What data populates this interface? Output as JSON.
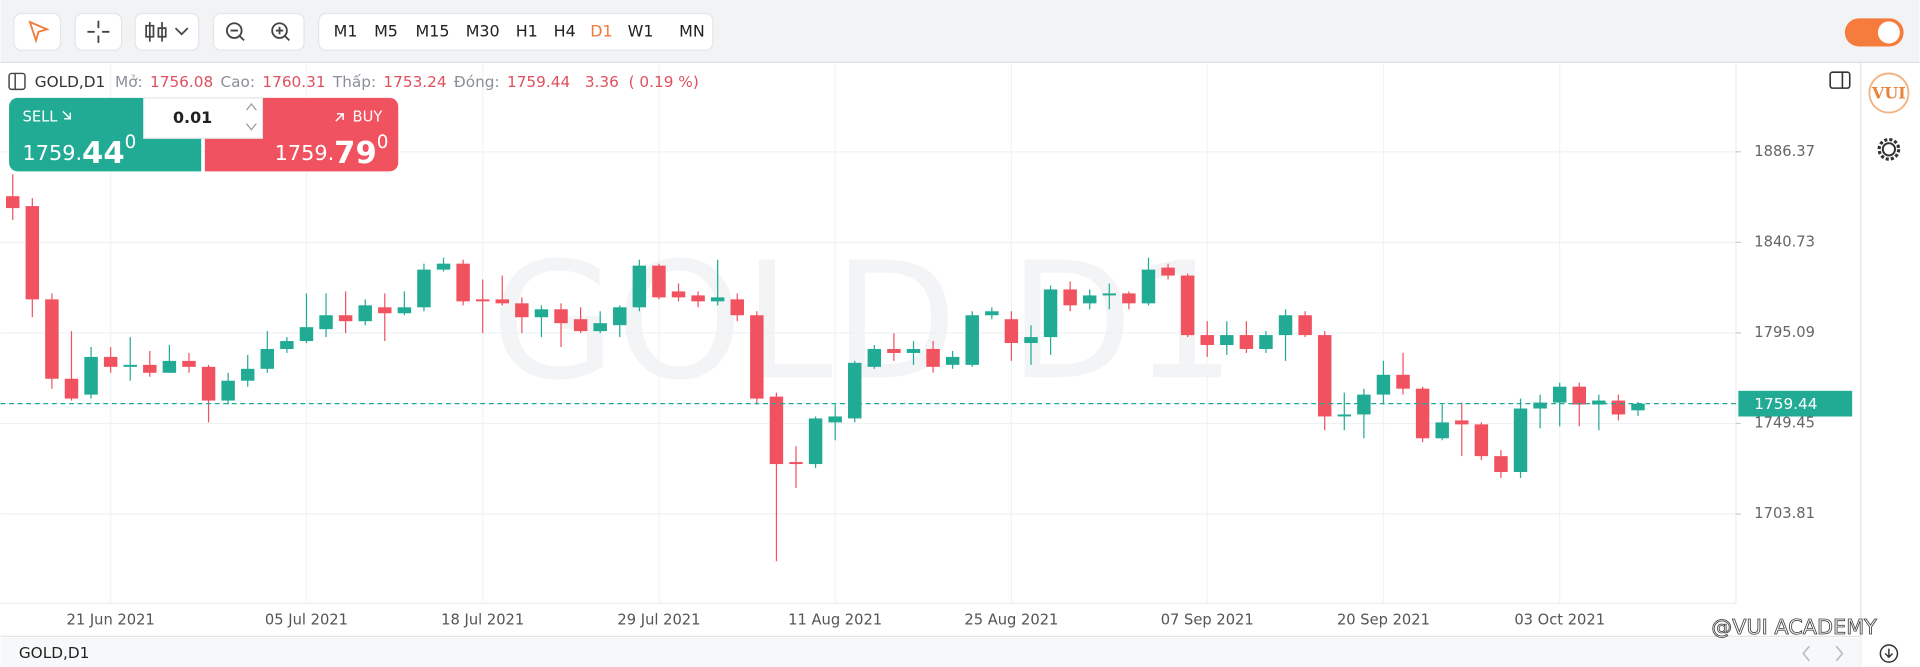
{
  "toolbar": {
    "timeframes": [
      "M1",
      "M5",
      "M15",
      "M30",
      "H1",
      "H4",
      "D1",
      "W1",
      "MN"
    ]
  },
  "header": {
    "symbol": "GOLD,D1",
    "open_label": "Mở:",
    "open": 1756.08,
    "high_label": "Cao:",
    "high": 1760.31,
    "low_label": "Thấp:",
    "low": 1753.24,
    "close_label": "Đóng:",
    "close": 1759.44,
    "change": 3.36,
    "change_pct": "( 0.19 %)"
  },
  "trade_panel": {
    "sell_label": "SELL",
    "buy_label": "BUY",
    "quantity": "0.01",
    "sell_price": {
      "main": "1759.",
      "big": "44",
      "sup": "0"
    },
    "buy_price": {
      "main": "1759.",
      "big": "79",
      "sup": "0"
    }
  },
  "watermark": "GOLD D1",
  "logo": "VUI",
  "footer": {
    "symbol_tab": "GOLD,D1",
    "credit": "@VUI ACADEMY"
  },
  "chart_data": {
    "type": "candlestick",
    "categories": [
      null,
      null,
      null,
      null,
      null,
      "21 Jun 2021",
      null,
      null,
      null,
      null,
      null,
      null,
      null,
      null,
      null,
      "05 Jul 2021",
      null,
      null,
      null,
      null,
      null,
      null,
      null,
      null,
      "18 Jul 2021",
      null,
      null,
      null,
      null,
      null,
      null,
      null,
      null,
      "29 Jul 2021",
      null,
      null,
      null,
      null,
      null,
      null,
      null,
      null,
      "11 Aug 2021",
      null,
      null,
      null,
      null,
      null,
      null,
      null,
      null,
      "25 Aug 2021",
      null,
      null,
      null,
      null,
      null,
      null,
      null,
      null,
      null,
      "07 Sep 2021",
      null,
      null,
      null,
      null,
      null,
      null,
      null,
      null,
      "20 Sep 2021",
      null,
      null,
      null,
      null,
      null,
      null,
      null,
      null,
      "03 Oct 2021",
      null,
      null,
      null,
      null
    ],
    "open": [
      1864,
      1859,
      1812,
      1772,
      1764,
      1783,
      1778,
      1779,
      1775,
      1781,
      1778,
      1761,
      1771,
      1777,
      1787,
      1791,
      1797,
      1804,
      1801,
      1808,
      1805,
      1808,
      1827,
      1830,
      1812,
      1812,
      1810,
      1803,
      1807,
      1802,
      1796,
      1799,
      1808,
      1829,
      1816,
      1814,
      1811,
      1812,
      1804,
      1763,
      1730,
      1729,
      1750,
      1752,
      1778,
      1787,
      1785,
      1787,
      1779,
      1779,
      1804,
      1802,
      1790,
      1793,
      1817,
      1810,
      1814,
      1815,
      1810,
      1828,
      1824,
      1794,
      1789,
      1794,
      1787,
      1794,
      1804,
      1794,
      1753,
      1754,
      1764,
      1774,
      1767,
      1742,
      1751,
      1749,
      1733,
      1725,
      1757,
      1760,
      1768,
      1759,
      1761,
      1756.08
    ],
    "high": [
      1875,
      1863,
      1815,
      1796,
      1788,
      1788,
      1793,
      1786,
      1789,
      1785,
      1779,
      1775,
      1784,
      1796,
      1793,
      1815,
      1815,
      1816,
      1812,
      1815,
      1816,
      1830,
      1833,
      1832,
      1822,
      1824,
      1813,
      1809,
      1810,
      1808,
      1806,
      1809,
      1832,
      1830,
      1820,
      1816,
      1832,
      1815,
      1806,
      1765,
      1738,
      1753,
      1759,
      1781,
      1789,
      1795,
      1791,
      1791,
      1786,
      1806,
      1808,
      1806,
      1799,
      1819,
      1821,
      1817,
      1820,
      1816,
      1833,
      1830,
      1825,
      1801,
      1801,
      1801,
      1796,
      1807,
      1806,
      1796,
      1765,
      1767,
      1781,
      1785,
      1768,
      1759,
      1760,
      1750,
      1736,
      1762,
      1764,
      1770,
      1770,
      1764,
      1764,
      1760.31
    ],
    "low": [
      1852,
      1803,
      1767,
      1761,
      1762,
      1775,
      1771,
      1773,
      1775,
      1775,
      1750,
      1759,
      1768,
      1775,
      1785,
      1790,
      1793,
      1795,
      1799,
      1791,
      1804,
      1806,
      1826,
      1809,
      1795,
      1809,
      1795,
      1793,
      1788,
      1795,
      1795,
      1793,
      1806,
      1812,
      1811,
      1808,
      1809,
      1801,
      1759,
      1680,
      1717,
      1727,
      1741,
      1750,
      1777,
      1781,
      1779,
      1775,
      1777,
      1778,
      1802,
      1781,
      1779,
      1784,
      1806,
      1807,
      1807,
      1807,
      1809,
      1822,
      1793,
      1783,
      1784,
      1785,
      1785,
      1781,
      1793,
      1746,
      1746,
      1742,
      1759,
      1764,
      1740,
      1741,
      1733,
      1731,
      1722,
      1722,
      1747,
      1748,
      1748,
      1746,
      1751,
      1753.24
    ],
    "close": [
      1858,
      1812,
      1772,
      1762,
      1783,
      1778,
      1779,
      1775,
      1781,
      1778,
      1761,
      1771,
      1777,
      1787,
      1791,
      1798,
      1804,
      1801,
      1809,
      1805,
      1808,
      1827,
      1830,
      1811,
      1811,
      1810,
      1803,
      1807,
      1800,
      1796,
      1800,
      1808,
      1829,
      1813,
      1813,
      1811,
      1813,
      1804,
      1762,
      1729,
      1729,
      1752,
      1753,
      1780,
      1787,
      1785,
      1787,
      1778,
      1783,
      1804,
      1806,
      1790,
      1793,
      1817,
      1809,
      1814,
      1815,
      1810,
      1827,
      1824,
      1794,
      1789,
      1794,
      1787,
      1794,
      1804,
      1794,
      1753,
      1754,
      1764,
      1774,
      1767,
      1742,
      1750,
      1749,
      1733,
      1725,
      1757,
      1760,
      1768,
      1759,
      1761,
      1754,
      1759.44
    ],
    "up_color": "#22ab94",
    "down_color": "#f0525f",
    "last_price": 1759.44,
    "ylim": [
      1658.8,
      1930.8
    ],
    "yticks": [
      1703.81,
      1749.45,
      1795.09,
      1840.73,
      1886.37
    ],
    "grid": true
  }
}
